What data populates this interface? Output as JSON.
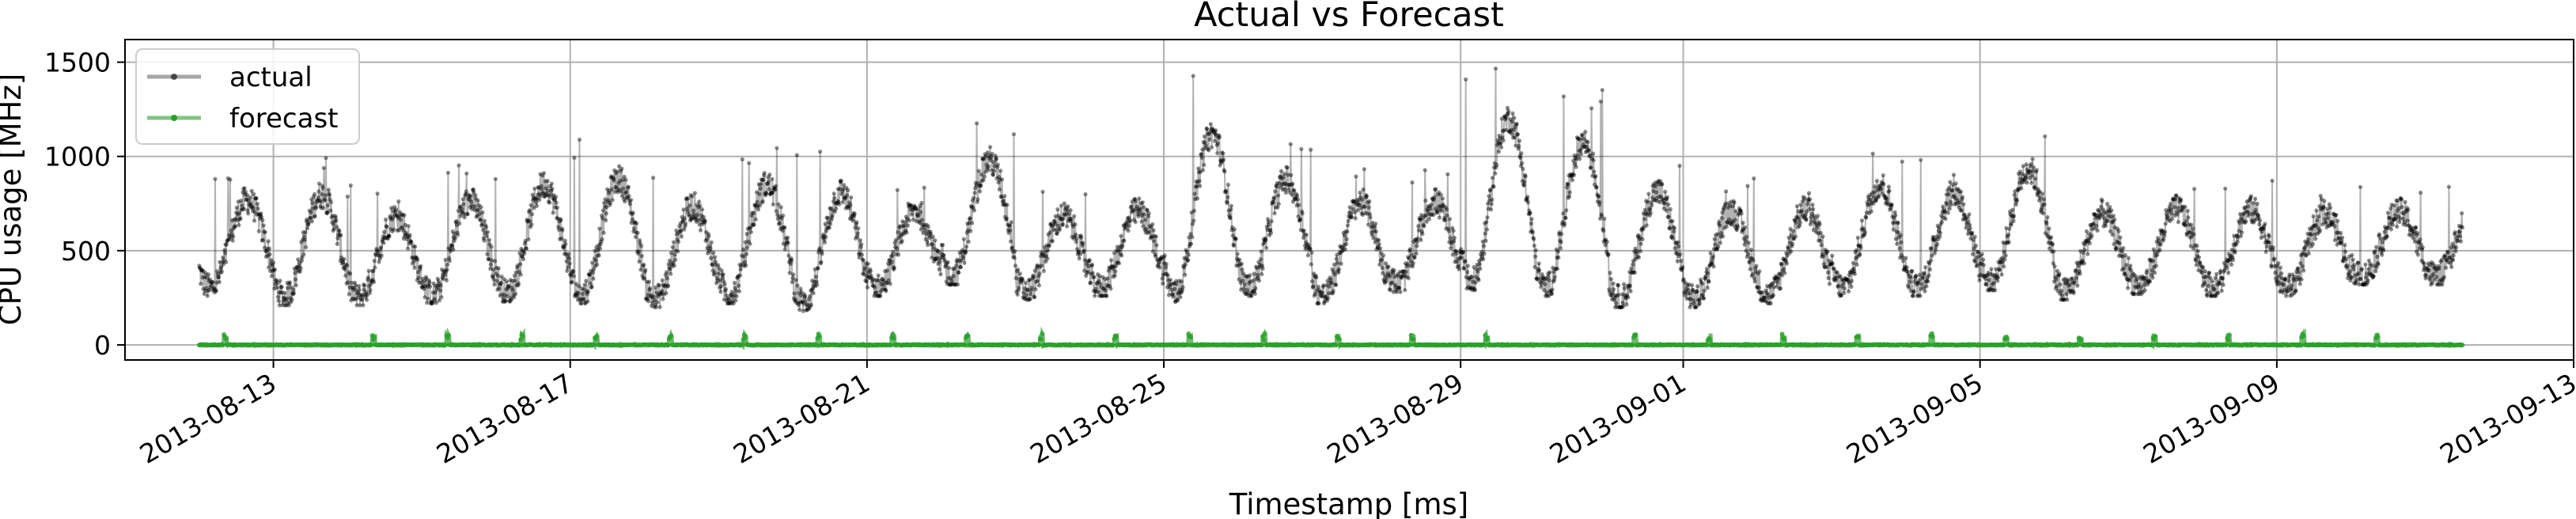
{
  "chart_data": {
    "type": "line",
    "title": "Actual vs Forecast",
    "xlabel": "Timestamp [ms]",
    "ylabel": "CPU usage [MHz]",
    "x_range": [
      "2013-08-11",
      "2013-09-13"
    ],
    "ylim": [
      -80,
      1620
    ],
    "x_ticks": [
      "2013-08-13",
      "2013-08-17",
      "2013-08-21",
      "2013-08-25",
      "2013-08-29",
      "2013-09-01",
      "2013-09-05",
      "2013-09-09",
      "2013-09-13"
    ],
    "y_ticks": [
      0,
      500,
      1000,
      1500
    ],
    "grid": true,
    "legend_position": "top-left",
    "series": [
      {
        "name": "actual",
        "color": "#000000",
        "style": "line with dot markers, semi-transparent",
        "start": "2013-08-12",
        "end": "2013-09-11 12:00",
        "daily_min_max": [
          [
            300,
            950
          ],
          [
            250,
            1010
          ],
          [
            250,
            850
          ],
          [
            260,
            960
          ],
          [
            270,
            1080
          ],
          [
            260,
            1120
          ],
          [
            240,
            930
          ],
          [
            260,
            1080
          ],
          [
            220,
            1040
          ],
          [
            300,
            870
          ],
          [
            360,
            1220
          ],
          [
            280,
            840
          ],
          [
            300,
            870
          ],
          [
            270,
            1450
          ],
          [
            300,
            1100
          ],
          [
            260,
            950
          ],
          [
            320,
            930
          ],
          [
            330,
            1540
          ],
          [
            300,
            1380
          ],
          [
            240,
            1040
          ],
          [
            240,
            890
          ],
          [
            260,
            900
          ],
          [
            300,
            1060
          ],
          [
            300,
            1000
          ],
          [
            330,
            1170
          ],
          [
            280,
            860
          ],
          [
            310,
            880
          ],
          [
            300,
            880
          ],
          [
            300,
            850
          ],
          [
            360,
            840
          ]
        ]
      },
      {
        "name": "forecast",
        "color": "#2ca02c",
        "style": "line with dot markers",
        "start": "2013-08-12",
        "end": "2013-09-11 12:00",
        "baseline": 0,
        "spike_days": [
          "2013-08-12",
          "2013-08-14",
          "2013-08-15",
          "2013-08-16",
          "2013-08-17",
          "2013-08-18",
          "2013-08-19",
          "2013-08-20",
          "2013-08-21",
          "2013-08-22",
          "2013-08-23",
          "2013-08-24",
          "2013-08-25",
          "2013-08-26",
          "2013-08-27",
          "2013-08-28",
          "2013-08-29",
          "2013-08-31",
          "2013-09-01",
          "2013-09-02",
          "2013-09-03",
          "2013-09-04",
          "2013-09-05",
          "2013-09-06",
          "2013-09-07",
          "2013-09-08",
          "2013-09-09",
          "2013-09-10"
        ],
        "spike_max": 60
      }
    ]
  }
}
